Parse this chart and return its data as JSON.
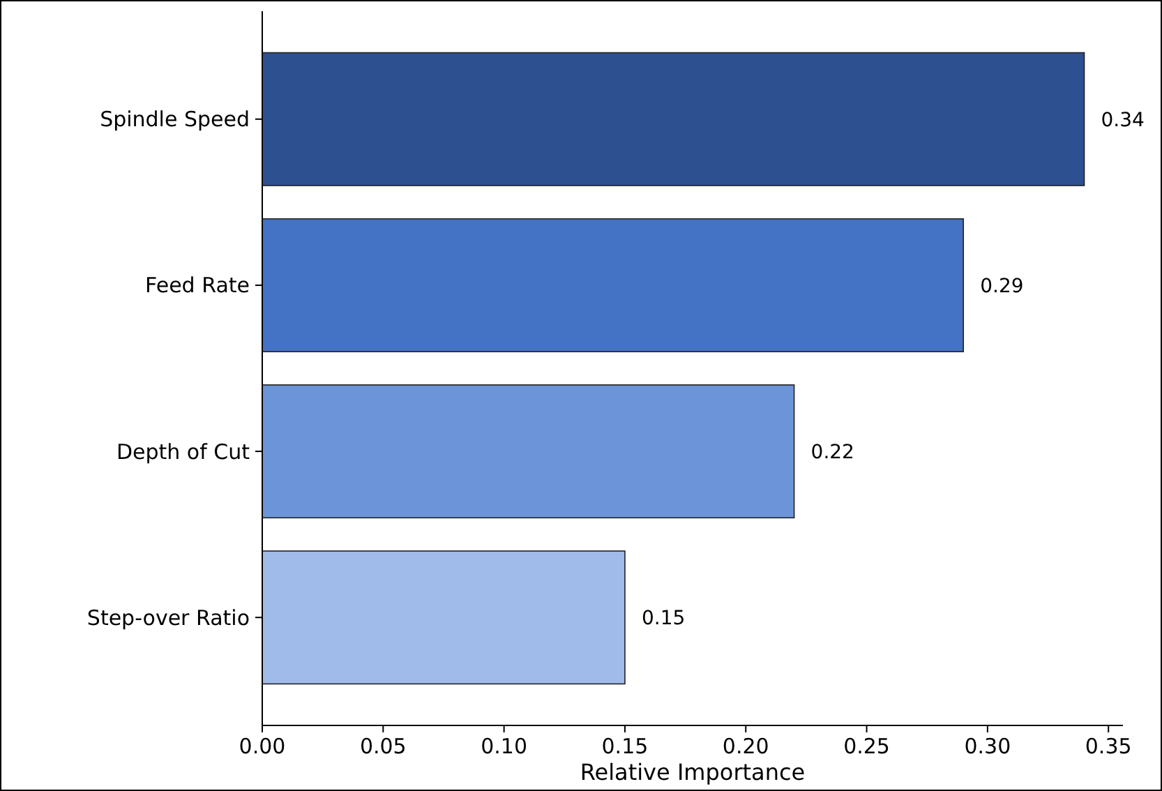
{
  "chart_data": {
    "type": "bar",
    "orientation": "horizontal",
    "xlabel": "Relative Importance",
    "categories": [
      "Spindle Speed",
      "Feed Rate",
      "Depth of Cut",
      "Step-over Ratio"
    ],
    "values": [
      0.34,
      0.29,
      0.22,
      0.15
    ],
    "colors": [
      "#2d5091",
      "#4472c4",
      "#6b95d8",
      "#a0baea"
    ],
    "xlim": [
      0,
      0.356
    ],
    "xticks": [
      {
        "value": 0,
        "label": "0.00"
      },
      {
        "value": 0.05,
        "label": "0.05"
      },
      {
        "value": 0.1,
        "label": "0.10"
      },
      {
        "value": 0.15,
        "label": "0.15"
      },
      {
        "value": 0.2,
        "label": "0.20"
      },
      {
        "value": 0.25,
        "label": "0.25"
      },
      {
        "value": 0.3,
        "label": "0.30"
      },
      {
        "value": 0.35,
        "label": "0.35"
      }
    ],
    "data_labels": true,
    "grid": false
  }
}
